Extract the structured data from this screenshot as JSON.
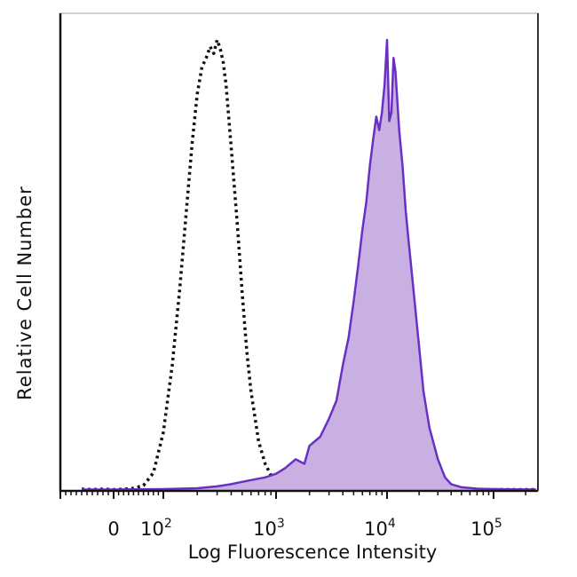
{
  "chart_data": {
    "type": "area",
    "xlabel": "Log Fluorescence Intensity",
    "ylabel": "Relative Cell Number",
    "x_scale": "biexponential",
    "xlim": [
      -60,
      250000
    ],
    "ylim": [
      0,
      1.0
    ],
    "x_ticks": [
      {
        "value": 0,
        "base": "0",
        "exp": ""
      },
      {
        "value": 100,
        "base": "10",
        "exp": "2"
      },
      {
        "value": 1000,
        "base": "10",
        "exp": "3"
      },
      {
        "value": 10000,
        "base": "10",
        "exp": "4"
      },
      {
        "value": 100000,
        "base": "10",
        "exp": "5"
      }
    ],
    "series": [
      {
        "style": "dotted",
        "color": "#111111",
        "fill": "none",
        "x": [
          -60,
          -40,
          -20,
          0,
          20,
          40,
          60,
          80,
          100,
          120,
          140,
          160,
          180,
          200,
          220,
          240,
          260,
          280,
          300,
          320,
          340,
          360,
          380,
          400,
          450,
          500,
          550,
          600,
          700,
          800,
          900,
          1000,
          1200,
          1500,
          2000,
          3000,
          5000,
          10000,
          30000,
          100000,
          250000
        ],
        "y": [
          0.004,
          0.003,
          0.004,
          0.003,
          0.004,
          0.006,
          0.012,
          0.04,
          0.13,
          0.28,
          0.45,
          0.62,
          0.77,
          0.88,
          0.94,
          0.96,
          0.985,
          0.97,
          1.0,
          0.98,
          0.95,
          0.9,
          0.83,
          0.76,
          0.6,
          0.44,
          0.31,
          0.22,
          0.11,
          0.06,
          0.035,
          0.018,
          0.01,
          0.006,
          0.004,
          0.003,
          0.003,
          0.003,
          0.003,
          0.003,
          0.003
        ]
      },
      {
        "style": "solid-filled",
        "color": "#6a2fc4",
        "fill": "#c9b0e3",
        "x": [
          -60,
          0,
          100,
          200,
          300,
          400,
          500,
          600,
          800,
          1000,
          1200,
          1500,
          1800,
          2000,
          2500,
          3000,
          3500,
          4000,
          4500,
          5000,
          5500,
          6000,
          6500,
          7000,
          7500,
          8000,
          8500,
          9000,
          9500,
          10000,
          10500,
          11000,
          11500,
          12000,
          13000,
          14000,
          15000,
          16000,
          18000,
          20000,
          22000,
          25000,
          30000,
          35000,
          40000,
          50000,
          70000,
          100000,
          250000
        ],
        "y": [
          0.003,
          0.003,
          0.004,
          0.006,
          0.01,
          0.015,
          0.02,
          0.024,
          0.03,
          0.038,
          0.05,
          0.07,
          0.06,
          0.1,
          0.12,
          0.16,
          0.2,
          0.28,
          0.34,
          0.42,
          0.5,
          0.58,
          0.64,
          0.72,
          0.78,
          0.83,
          0.8,
          0.84,
          0.9,
          1.0,
          0.82,
          0.84,
          0.96,
          0.93,
          0.8,
          0.72,
          0.62,
          0.55,
          0.43,
          0.32,
          0.22,
          0.14,
          0.07,
          0.03,
          0.015,
          0.008,
          0.005,
          0.004,
          0.003
        ]
      }
    ]
  }
}
